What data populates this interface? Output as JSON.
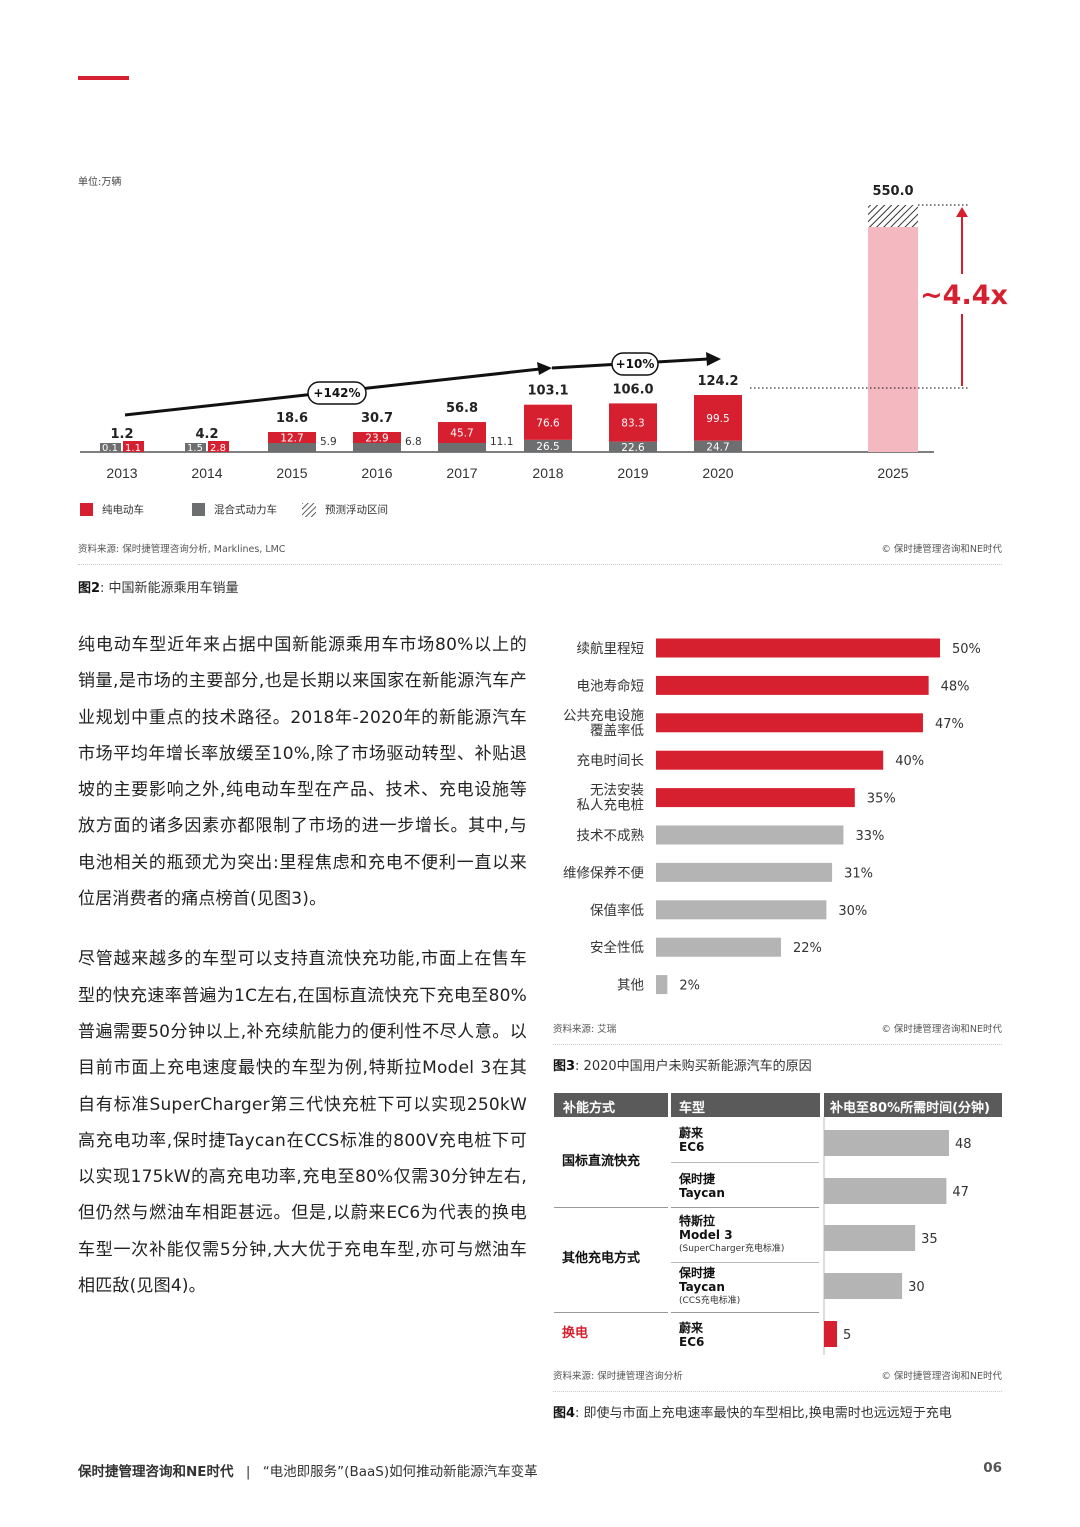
{
  "figure2": {
    "unit_label": "单位:万辆",
    "chart_data": {
      "type": "bar",
      "title": "",
      "categories": [
        "2013",
        "2014",
        "2015",
        "2016",
        "2017",
        "2018",
        "2019",
        "2020",
        "2025"
      ],
      "totals": [
        "1.2",
        "4.2",
        "18.6",
        "30.7",
        "56.8",
        "103.1",
        "106.0",
        "124.2",
        "550.0"
      ],
      "series": [
        {
          "name": "纯电动车",
          "values": [
            1.1,
            2.8,
            12.7,
            23.9,
            45.7,
            76.6,
            83.3,
            99.5,
            null
          ],
          "labels": [
            "1.1",
            "2.8",
            "12.7",
            "23.9",
            "45.7",
            "76.6",
            "83.3",
            "99.5",
            ""
          ]
        },
        {
          "name": "混合式动力车",
          "values": [
            0.1,
            1.5,
            5.9,
            6.8,
            11.1,
            26.5,
            22.6,
            24.7,
            null
          ],
          "labels": [
            "0.1",
            "1.5",
            "5.9",
            "6.8",
            "11.1",
            "26.5",
            "22.6",
            "24.7",
            ""
          ]
        }
      ],
      "forecast_2025": {
        "total": 550.0,
        "range_legend": "预测浮动区间"
      },
      "annotations": {
        "growth_1": "+142%",
        "growth_2": "+10%",
        "multiplier": "~4.4x"
      },
      "ylim": [
        0,
        550
      ]
    },
    "legend": {
      "bev": "纯电动车",
      "hybrid": "混合式动力车",
      "range": "预测浮动区间"
    },
    "source": "资料来源: 保时捷管理咨询分析, Marklines, LMC",
    "copyright": "© 保时捷管理咨询和NE时代",
    "caption_num": "图2",
    "caption_text": ": 中国新能源乘用车销量"
  },
  "body_text": {
    "p1": "纯电动车型近年来占据中国新能源乘用车市场80%以上的销量,是市场的主要部分,也是长期以来国家在新能源汽车产业规划中重点的技术路径。2018年-2020年的新能源汽车市场平均年增长率放缓至10%,除了市场驱动转型、补贴退坡的主要影响之外,纯电动车型在产品、技术、充电设施等放方面的诸多因素亦都限制了市场的进一步增长。其中,与电池相关的瓶颈尤为突出:里程焦虑和充电不便利一直以来位居消费者的痛点榜首(见图3)。",
    "p2": "尽管越来越多的车型可以支持直流快充功能,市面上在售车型的快充速率普遍为1C左右,在国标直流快充下充电至80%普遍需要50分钟以上,补充续航能力的便利性不尽人意。以目前市面上充电速度最快的车型为例,特斯拉Model 3在其自有标准SuperCharger第三代快充桩下可以实现250kW高充电功率,保时捷Taycan在CCS标准的800V充电桩下可以实现175kW的高充电功率,充电至80%仅需30分钟左右,但仍然与燃油车相距甚远。但是,以蔚来EC6为代表的换电车型一次补能仅需5分钟,大大优于充电车型,亦可与燃油车相匹敌(见图4)。"
  },
  "figure3": {
    "chart_data": {
      "type": "bar",
      "orientation": "horizontal",
      "categories": [
        [
          "续航里程短"
        ],
        [
          "电池寿命短"
        ],
        [
          "公共充电设施",
          "覆盖率低"
        ],
        [
          "充电时间长"
        ],
        [
          "无法安装",
          "私人充电桩"
        ],
        [
          "技术不成熟"
        ],
        [
          "维修保养不便"
        ],
        [
          "保值率低"
        ],
        [
          "安全性低"
        ],
        [
          "其他"
        ]
      ],
      "values": [
        50,
        48,
        47,
        40,
        35,
        33,
        31,
        30,
        22,
        2
      ],
      "labels": [
        "50%",
        "48%",
        "47%",
        "40%",
        "35%",
        "33%",
        "31%",
        "30%",
        "22%",
        "2%"
      ],
      "highlight_count": 5,
      "xlim": [
        0,
        50
      ]
    },
    "source": "资料来源: 艾瑞",
    "copyright": "© 保时捷管理咨询和NE时代",
    "caption_num": "图3",
    "caption_text": ": 2020中国用户未购买新能源汽车的原因"
  },
  "figure4": {
    "headers": [
      "补能方式",
      "车型",
      "补电至80%所需时间(分钟)"
    ],
    "groups": [
      {
        "label": "国标直流快充",
        "highlight": false
      },
      {
        "label": "其他充电方式",
        "highlight": false
      },
      {
        "label": "换电",
        "highlight": true
      }
    ],
    "models": [
      {
        "line1": "蔚来",
        "line2": "EC6",
        "sub": ""
      },
      {
        "line1": "保时捷",
        "line2": "Taycan",
        "sub": ""
      },
      {
        "line1": "特斯拉",
        "line2": "Model 3",
        "sub": "(SuperCharger充电标准)"
      },
      {
        "line1": "保时捷",
        "line2": "Taycan",
        "sub": "(CCS充电标准)"
      },
      {
        "line1": "蔚来",
        "line2": "EC6",
        "sub": ""
      }
    ],
    "chart_data": {
      "type": "bar",
      "orientation": "horizontal",
      "values": [
        48,
        47,
        35,
        30,
        5
      ],
      "labels": [
        "48",
        "47",
        "35",
        "30",
        "5"
      ],
      "highlight_index": 4
    },
    "source": "资料来源: 保时捷管理咨询分析",
    "copyright": "© 保时捷管理咨询和NE时代",
    "caption_num": "图4",
    "caption_text": ": 即使与市面上充电速率最快的车型相比,换电需时也远远短于充电"
  },
  "footer": {
    "brand": "保时捷管理咨询和NE时代",
    "separator": "|",
    "title": "“电池即服务”(BaaS)如何推动新能源汽车变革",
    "page": "06"
  },
  "colors": {
    "red": "#d6202f",
    "gray": "#6d6e70",
    "light_gray": "#b4b4b4",
    "pink": "#f4b9c0"
  }
}
